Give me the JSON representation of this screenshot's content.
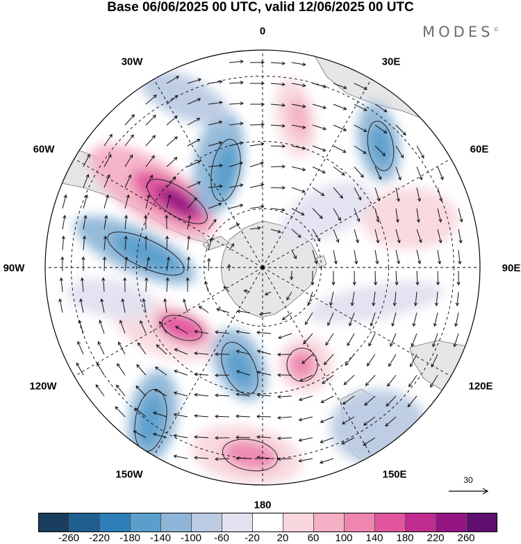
{
  "title": "Base 06/06/2025 00 UTC, valid 12/06/2025 00 UTC",
  "brand": "MODES",
  "brand_mark": "©",
  "longitude_labels": {
    "lon_0": "0",
    "lon_30e": "30E",
    "lon_60e": "60E",
    "lon_90e": "90E",
    "lon_120e": "120E",
    "lon_150e": "150E",
    "lon_180": "180",
    "lon_150w": "150W",
    "lon_120w": "120W",
    "lon_90w": "90W",
    "lon_60w": "60W",
    "lon_30w": "30W"
  },
  "reference_vector": {
    "label": "30"
  },
  "colorbar": {
    "colors": [
      "#1a3f5e",
      "#1f5f8f",
      "#2f7fb8",
      "#5a9fcc",
      "#8fb6d8",
      "#bccbe4",
      "#e2e2f0",
      "#ffffff",
      "#f8d8de",
      "#f4b0c4",
      "#ee86b0",
      "#e2559e",
      "#c12c90",
      "#951583",
      "#5e0f70"
    ],
    "ticks": [
      "-260",
      "-220",
      "-180",
      "-140",
      "-100",
      "-60",
      "-20",
      "20",
      "60",
      "100",
      "140",
      "180",
      "220",
      "260"
    ]
  },
  "map_colors": {
    "land": "#e6e6e6",
    "coast": "#707070",
    "arrow": "#111111",
    "grid": "#000000"
  }
}
